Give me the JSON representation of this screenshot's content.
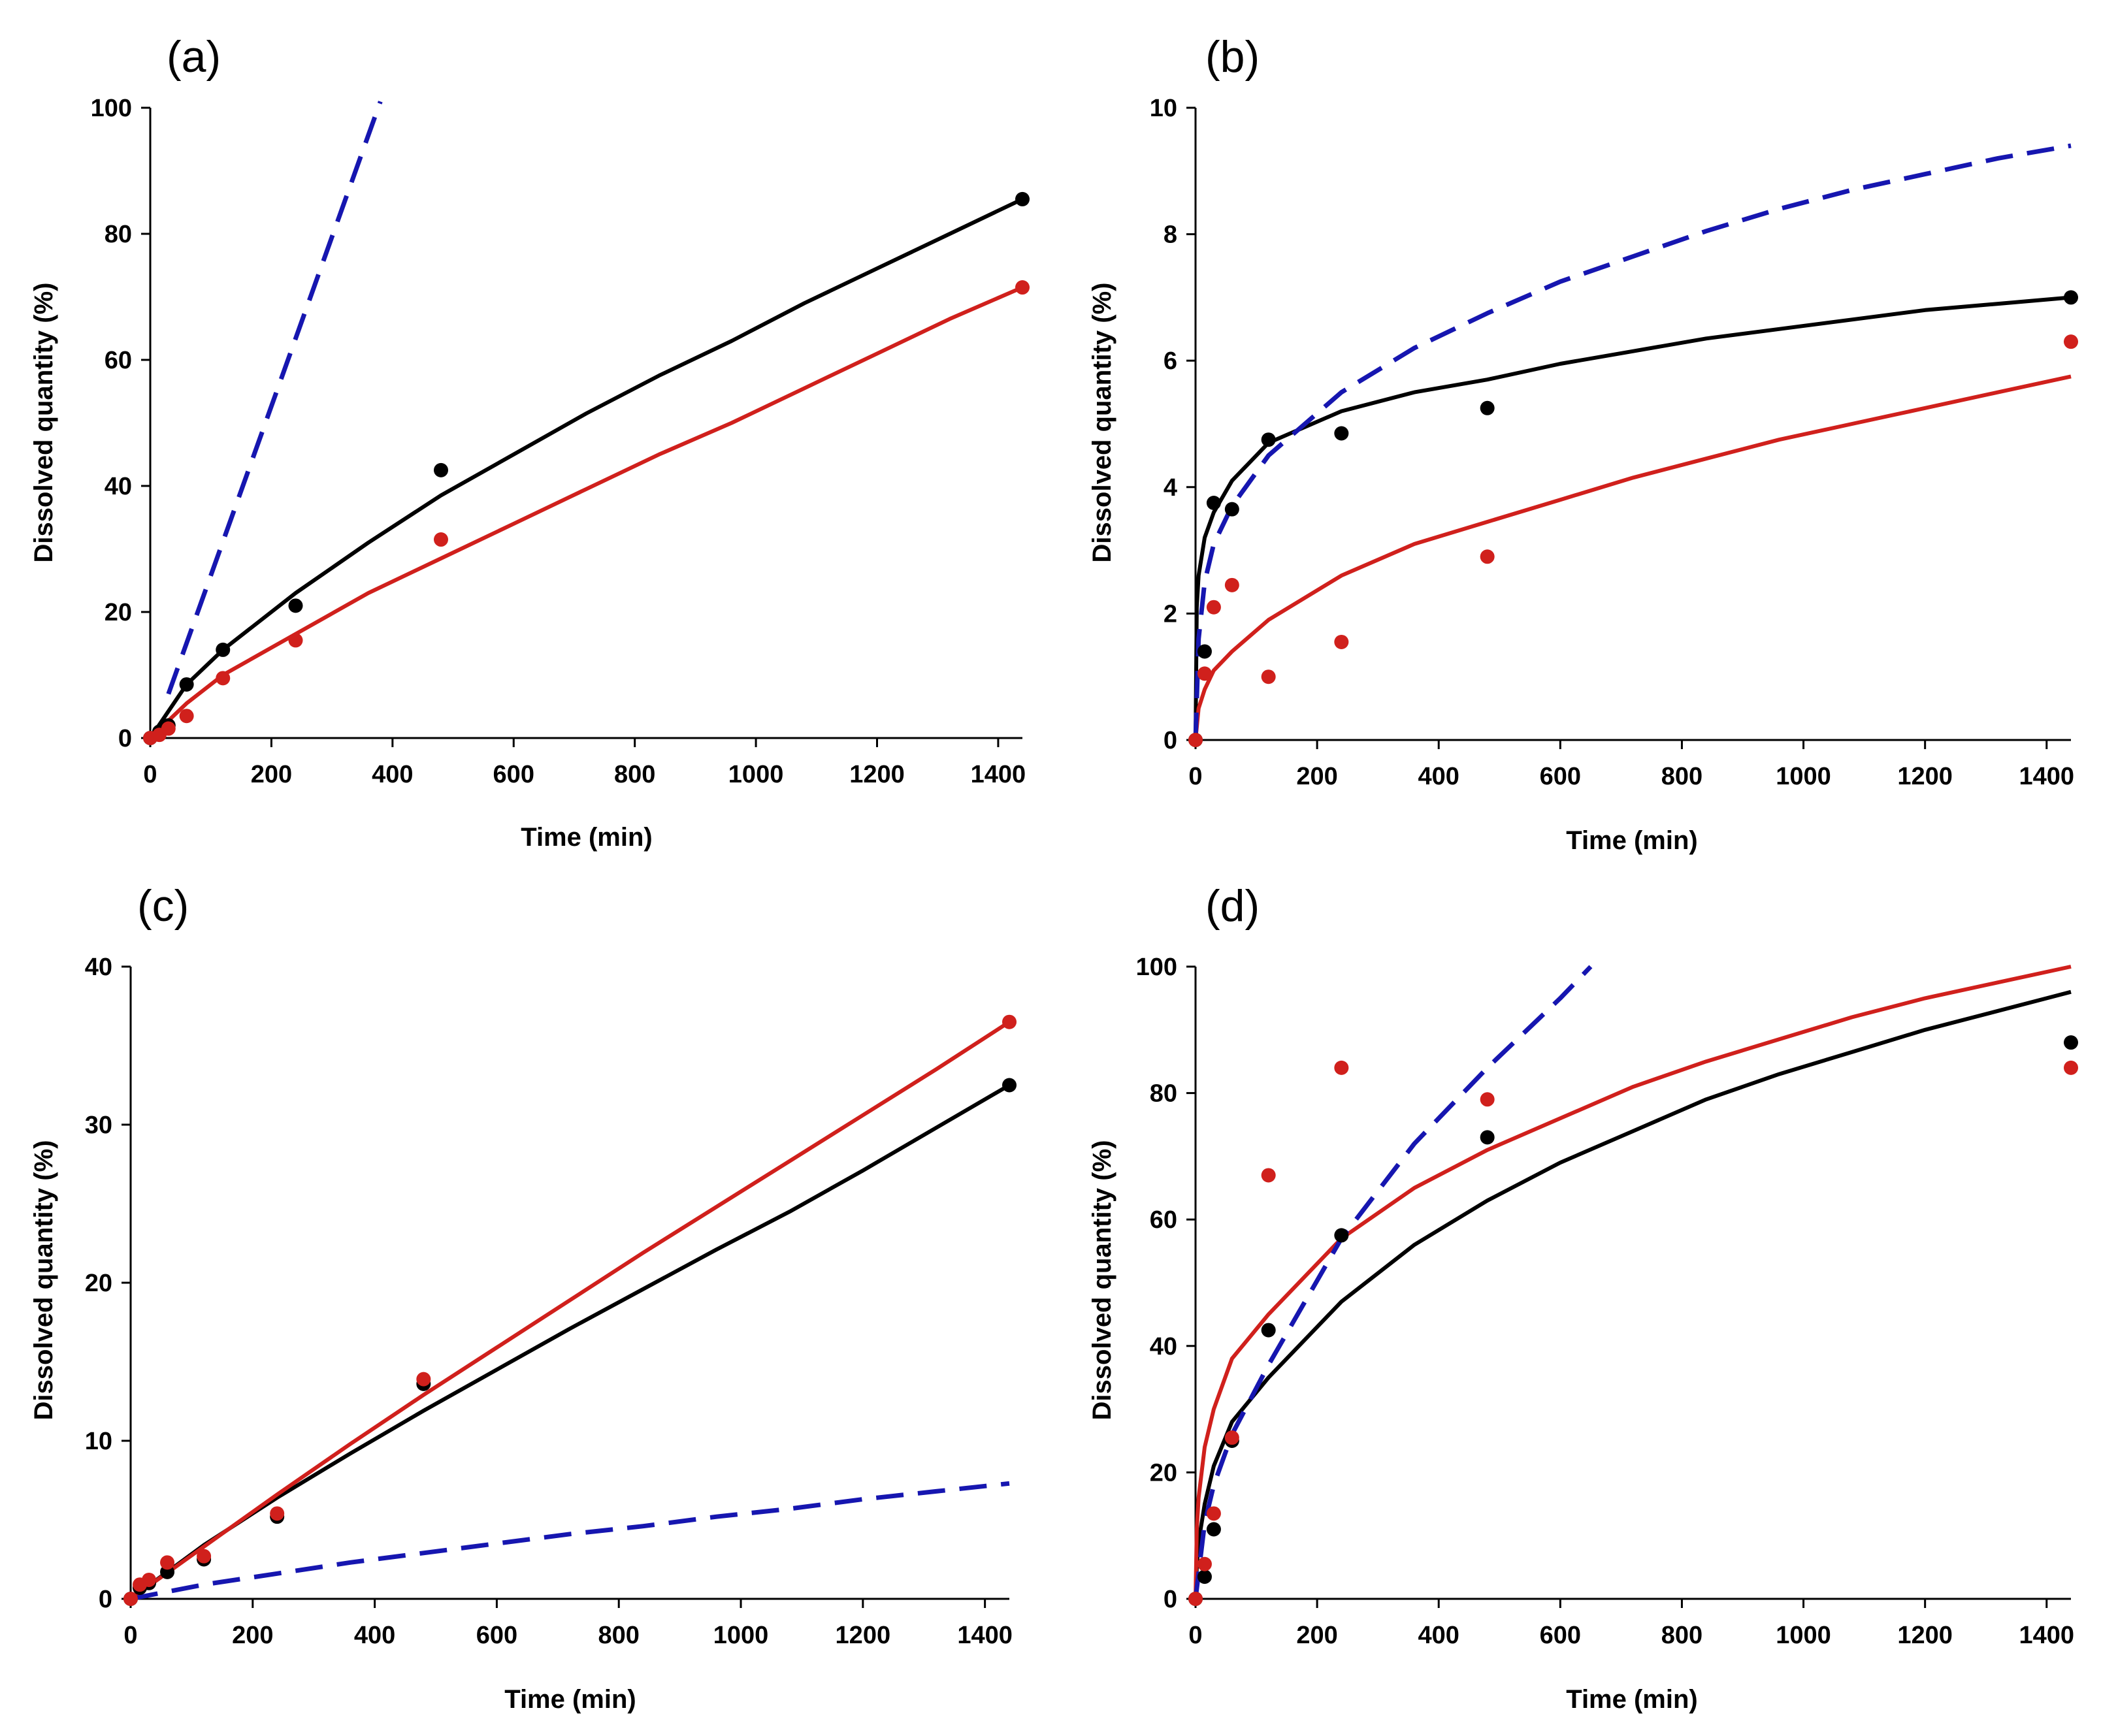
{
  "colors": {
    "black_series": "#000000",
    "red_series": "#d0201c",
    "blue_series": "#1616b0"
  },
  "chart_data": [
    {
      "panel_label": "(a)",
      "type": "line",
      "xlabel": "Time (min)",
      "ylabel": "Dissolved quantity (%)",
      "xlim": [
        0,
        1440
      ],
      "ylim": [
        0,
        100
      ],
      "xticks": [
        "0",
        "200",
        "400",
        "600",
        "800",
        "1000",
        "1200",
        "1400"
      ],
      "yticks": [
        "0",
        "20",
        "40",
        "60",
        "80",
        "100"
      ],
      "series": [
        {
          "name": "black fit",
          "kind": "line",
          "color": "black",
          "dash": false,
          "x": [
            0,
            60,
            120,
            240,
            360,
            480,
            600,
            720,
            840,
            960,
            1080,
            1200,
            1320,
            1440
          ],
          "y": [
            0,
            8.5,
            14,
            23,
            31,
            38.5,
            45,
            51.5,
            57.5,
            63,
            69,
            74.5,
            80,
            85.5
          ]
        },
        {
          "name": "red fit",
          "kind": "line",
          "color": "red",
          "dash": false,
          "x": [
            0,
            60,
            120,
            240,
            360,
            480,
            600,
            720,
            840,
            960,
            1080,
            1200,
            1320,
            1440
          ],
          "y": [
            0,
            5.5,
            10,
            16.5,
            23,
            28.5,
            34,
            39.5,
            45,
            50,
            55.5,
            61,
            66.5,
            71.5
          ]
        },
        {
          "name": "blue dashed",
          "kind": "line",
          "color": "blue",
          "dash": true,
          "x": [
            30,
            380
          ],
          "y": [
            7,
            101
          ]
        },
        {
          "name": "black points",
          "kind": "scatter",
          "color": "black",
          "x": [
            0,
            15,
            30,
            60,
            120,
            240,
            480,
            1440
          ],
          "y": [
            0,
            1,
            2,
            8.5,
            14,
            21,
            42.5,
            85.5
          ]
        },
        {
          "name": "red points",
          "kind": "scatter",
          "color": "red",
          "x": [
            0,
            15,
            30,
            60,
            120,
            240,
            480,
            1440
          ],
          "y": [
            0,
            0.5,
            1.5,
            3.5,
            9.5,
            15.5,
            31.5,
            71.5
          ]
        }
      ]
    },
    {
      "panel_label": "(b)",
      "type": "line",
      "xlabel": "Time (min)",
      "ylabel": "Dissolved quantity (%)",
      "xlim": [
        0,
        1440
      ],
      "ylim": [
        0,
        10
      ],
      "xticks": [
        "0",
        "200",
        "400",
        "600",
        "800",
        "1000",
        "1200",
        "1400"
      ],
      "yticks": [
        "0",
        "2",
        "4",
        "6",
        "8",
        "10"
      ],
      "series": [
        {
          "name": "black fit",
          "kind": "line",
          "color": "black",
          "dash": false,
          "x": [
            0,
            2,
            5,
            15,
            30,
            60,
            120,
            240,
            360,
            480,
            600,
            720,
            840,
            960,
            1080,
            1200,
            1320,
            1440
          ],
          "y": [
            0,
            2.1,
            2.6,
            3.2,
            3.6,
            4.1,
            4.7,
            5.2,
            5.5,
            5.7,
            5.95,
            6.15,
            6.35,
            6.5,
            6.65,
            6.8,
            6.9,
            7.0
          ]
        },
        {
          "name": "red fit",
          "kind": "line",
          "color": "red",
          "dash": false,
          "x": [
            0,
            5,
            15,
            30,
            60,
            120,
            240,
            360,
            480,
            600,
            720,
            840,
            960,
            1080,
            1200,
            1320,
            1440
          ],
          "y": [
            0,
            0.5,
            0.8,
            1.1,
            1.4,
            1.9,
            2.6,
            3.1,
            3.45,
            3.8,
            4.15,
            4.45,
            4.75,
            5.0,
            5.25,
            5.5,
            5.75
          ]
        },
        {
          "name": "blue dashed",
          "kind": "line",
          "color": "blue",
          "dash": true,
          "x": [
            0,
            5,
            15,
            30,
            60,
            120,
            240,
            360,
            480,
            600,
            720,
            840,
            960,
            1080,
            1200,
            1320,
            1440
          ],
          "y": [
            0,
            1.6,
            2.5,
            3.1,
            3.7,
            4.5,
            5.5,
            6.2,
            6.75,
            7.25,
            7.65,
            8.05,
            8.4,
            8.7,
            8.95,
            9.2,
            9.4
          ]
        },
        {
          "name": "black points",
          "kind": "scatter",
          "color": "black",
          "x": [
            0,
            15,
            30,
            60,
            120,
            240,
            480,
            1440
          ],
          "y": [
            0,
            1.4,
            3.75,
            3.65,
            4.75,
            4.85,
            5.25,
            7.0
          ]
        },
        {
          "name": "red points",
          "kind": "scatter",
          "color": "red",
          "x": [
            0,
            15,
            30,
            60,
            120,
            240,
            480,
            1440
          ],
          "y": [
            0,
            1.05,
            2.1,
            2.45,
            1.0,
            1.55,
            2.9,
            6.3
          ]
        }
      ]
    },
    {
      "panel_label": "(c)",
      "type": "line",
      "xlabel": "Time (min)",
      "ylabel": "Dissolved quantity (%)",
      "xlim": [
        0,
        1440
      ],
      "ylim": [
        0,
        40
      ],
      "xticks": [
        "0",
        "200",
        "400",
        "600",
        "800",
        "1000",
        "1200",
        "1400"
      ],
      "yticks": [
        "0",
        "10",
        "20",
        "30",
        "40"
      ],
      "series": [
        {
          "name": "black fit",
          "kind": "line",
          "color": "black",
          "dash": false,
          "x": [
            0,
            120,
            240,
            360,
            480,
            600,
            720,
            840,
            960,
            1080,
            1200,
            1320,
            1440
          ],
          "y": [
            0,
            3.4,
            6.4,
            9.2,
            11.9,
            14.5,
            17.1,
            19.6,
            22.1,
            24.5,
            27.1,
            29.8,
            32.5
          ]
        },
        {
          "name": "red fit",
          "kind": "line",
          "color": "red",
          "dash": false,
          "x": [
            0,
            120,
            240,
            360,
            480,
            600,
            720,
            840,
            960,
            1080,
            1200,
            1320,
            1440
          ],
          "y": [
            0,
            3.3,
            6.6,
            9.8,
            12.9,
            15.9,
            18.9,
            21.9,
            24.8,
            27.7,
            30.6,
            33.5,
            36.5
          ]
        },
        {
          "name": "blue dashed",
          "kind": "line",
          "color": "blue",
          "dash": true,
          "x": [
            0,
            120,
            240,
            360,
            480,
            600,
            720,
            840,
            960,
            1080,
            1200,
            1320,
            1440
          ],
          "y": [
            0,
            0.9,
            1.6,
            2.3,
            2.9,
            3.5,
            4.1,
            4.6,
            5.2,
            5.7,
            6.3,
            6.8,
            7.3
          ]
        },
        {
          "name": "black points",
          "kind": "scatter",
          "color": "black",
          "x": [
            0,
            15,
            30,
            60,
            120,
            240,
            480,
            1440
          ],
          "y": [
            0,
            0.7,
            1.0,
            1.7,
            2.5,
            5.2,
            13.6,
            32.5
          ]
        },
        {
          "name": "red points",
          "kind": "scatter",
          "color": "red",
          "x": [
            0,
            15,
            30,
            60,
            120,
            240,
            480,
            1440
          ],
          "y": [
            0,
            0.9,
            1.2,
            2.3,
            2.7,
            5.4,
            13.9,
            36.5
          ]
        }
      ]
    },
    {
      "panel_label": "(d)",
      "type": "line",
      "xlabel": "Time (min)",
      "ylabel": "Dissolved quantity (%)",
      "xlim": [
        0,
        1440
      ],
      "ylim": [
        0,
        100
      ],
      "xticks": [
        "0",
        "200",
        "400",
        "600",
        "800",
        "1000",
        "1200",
        "1400"
      ],
      "yticks": [
        "0",
        "20",
        "40",
        "60",
        "80",
        "100"
      ],
      "series": [
        {
          "name": "black fit",
          "kind": "line",
          "color": "black",
          "dash": false,
          "x": [
            0,
            2,
            5,
            15,
            30,
            60,
            120,
            240,
            360,
            480,
            600,
            720,
            840,
            960,
            1080,
            1200,
            1320,
            1440
          ],
          "y": [
            0,
            5,
            9,
            15,
            21,
            28,
            35,
            47,
            56,
            63,
            69,
            74,
            79,
            83,
            86.5,
            90,
            93,
            96
          ]
        },
        {
          "name": "red fit",
          "kind": "line",
          "color": "red",
          "dash": false,
          "x": [
            0,
            2,
            5,
            15,
            30,
            60,
            120,
            240,
            360,
            480,
            600,
            720,
            840,
            960,
            1080,
            1200,
            1320,
            1440
          ],
          "y": [
            0,
            11,
            16,
            24,
            30,
            38,
            45,
            57,
            65,
            71,
            76,
            81,
            85,
            88.5,
            92,
            95,
            97.5,
            100
          ]
        },
        {
          "name": "blue dashed",
          "kind": "line",
          "color": "blue",
          "dash": true,
          "x": [
            0,
            15,
            30,
            60,
            120,
            240,
            360,
            480,
            600,
            650
          ],
          "y": [
            0,
            12,
            18,
            26,
            37,
            57,
            72,
            84,
            95,
            100
          ]
        },
        {
          "name": "black points",
          "kind": "scatter",
          "color": "black",
          "x": [
            0,
            15,
            30,
            60,
            120,
            240,
            480,
            1440
          ],
          "y": [
            0,
            3.5,
            11,
            25,
            42.5,
            57.5,
            73,
            88
          ]
        },
        {
          "name": "red points",
          "kind": "scatter",
          "color": "red",
          "x": [
            0,
            15,
            30,
            60,
            120,
            240,
            480,
            1440
          ],
          "y": [
            0,
            5.5,
            13.5,
            25.5,
            67,
            84,
            79,
            84
          ]
        }
      ]
    }
  ]
}
